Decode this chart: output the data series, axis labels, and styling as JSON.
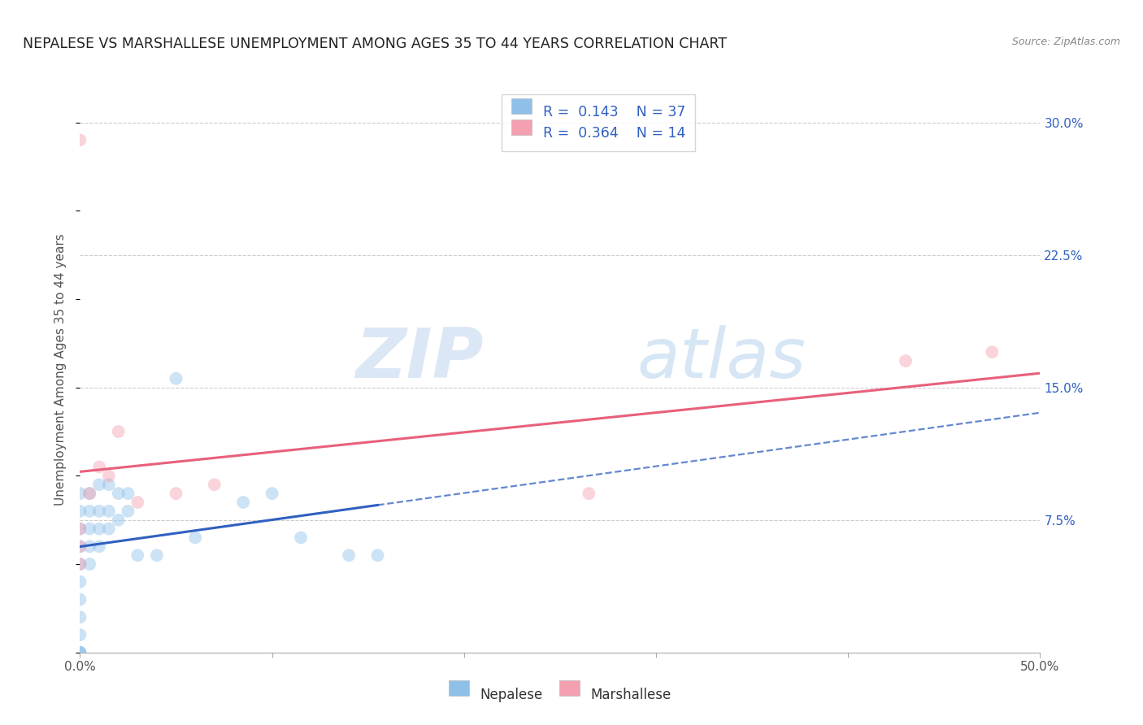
{
  "title": "NEPALESE VS MARSHALLESE UNEMPLOYMENT AMONG AGES 35 TO 44 YEARS CORRELATION CHART",
  "source": "Source: ZipAtlas.com",
  "xlabel": "",
  "ylabel": "Unemployment Among Ages 35 to 44 years",
  "xlim": [
    0.0,
    0.5
  ],
  "ylim": [
    0.0,
    0.32
  ],
  "xticks": [
    0.0,
    0.1,
    0.2,
    0.3,
    0.4,
    0.5
  ],
  "xticklabels": [
    "0.0%",
    "",
    "",
    "",
    "",
    "50.0%"
  ],
  "yticks_right": [
    0.075,
    0.15,
    0.225,
    0.3
  ],
  "yticklabels_right": [
    "7.5%",
    "15.0%",
    "22.5%",
    "30.0%"
  ],
  "watermark_zip": "ZIP",
  "watermark_atlas": "atlas",
  "legend_R_nepalese": "0.143",
  "legend_N_nepalese": "37",
  "legend_R_marshallese": "0.364",
  "legend_N_marshallese": "14",
  "nepalese_color": "#8fc0ea",
  "marshallese_color": "#f4a0b0",
  "nepalese_line_color": "#3060c0",
  "marshallese_line_color": "#e8607a",
  "background_color": "#ffffff",
  "grid_color": "#cccccc",
  "nepalese_x": [
    0.0,
    0.0,
    0.0,
    0.0,
    0.0,
    0.0,
    0.0,
    0.0,
    0.0,
    0.0,
    0.0,
    0.0,
    0.005,
    0.005,
    0.005,
    0.005,
    0.005,
    0.01,
    0.01,
    0.01,
    0.01,
    0.015,
    0.015,
    0.015,
    0.02,
    0.02,
    0.025,
    0.025,
    0.03,
    0.04,
    0.05,
    0.06,
    0.085,
    0.1,
    0.115,
    0.14,
    0.155
  ],
  "nepalese_y": [
    0.0,
    0.0,
    0.0,
    0.01,
    0.02,
    0.03,
    0.04,
    0.05,
    0.06,
    0.07,
    0.08,
    0.09,
    0.05,
    0.06,
    0.07,
    0.08,
    0.09,
    0.06,
    0.07,
    0.08,
    0.095,
    0.07,
    0.08,
    0.095,
    0.075,
    0.09,
    0.08,
    0.09,
    0.055,
    0.055,
    0.155,
    0.065,
    0.085,
    0.09,
    0.065,
    0.055,
    0.055
  ],
  "marshallese_x": [
    0.0,
    0.0,
    0.0,
    0.0,
    0.005,
    0.01,
    0.015,
    0.02,
    0.03,
    0.05,
    0.07,
    0.265,
    0.43,
    0.475
  ],
  "marshallese_y": [
    0.05,
    0.06,
    0.07,
    0.29,
    0.09,
    0.105,
    0.1,
    0.125,
    0.085,
    0.09,
    0.095,
    0.09,
    0.165,
    0.17
  ],
  "marker_size": 130,
  "alpha": 0.45,
  "title_fontsize": 12.5,
  "label_fontsize": 11,
  "tick_fontsize": 11
}
